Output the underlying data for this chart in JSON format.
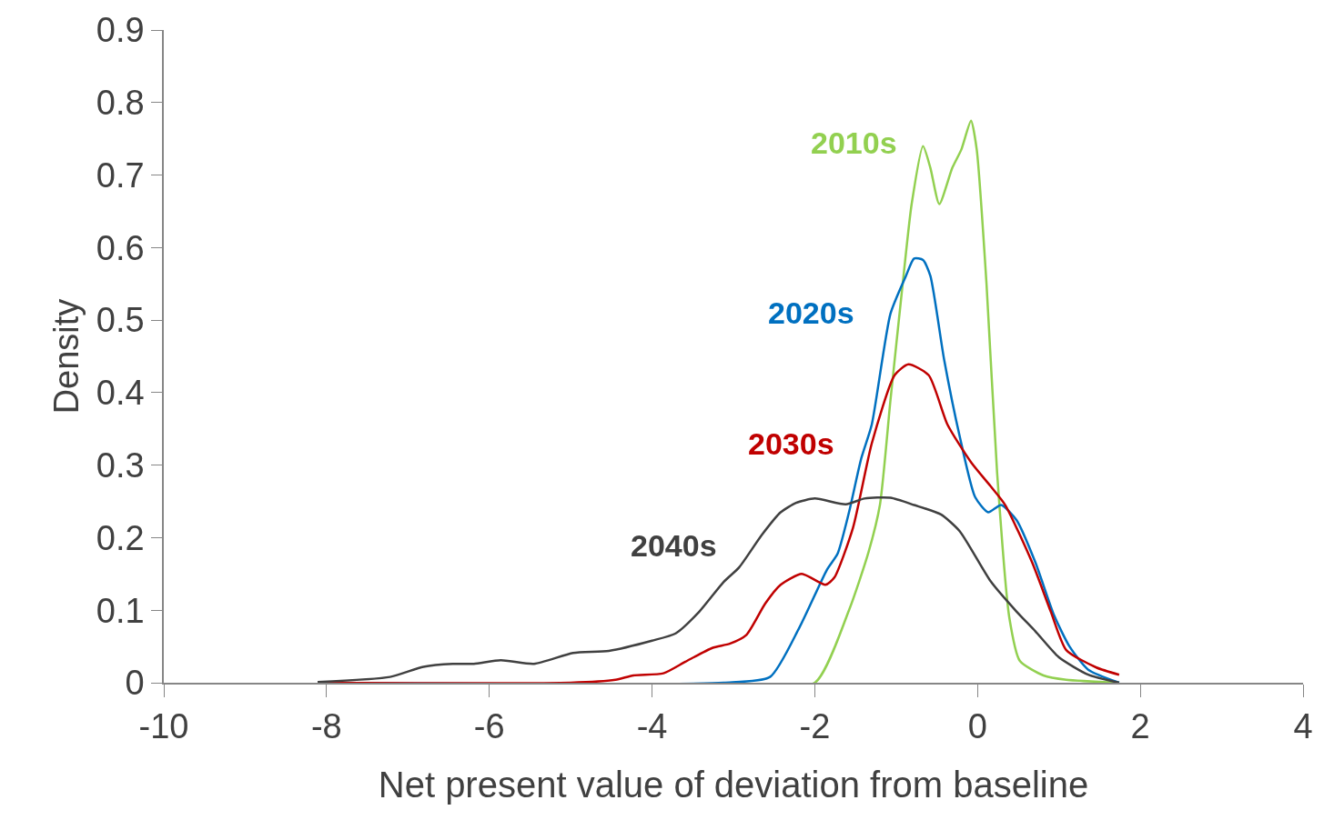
{
  "chart_data": {
    "type": "line",
    "xlabel": "Net present value of deviation from baseline",
    "ylabel": "Density",
    "xlim": [
      -10,
      4
    ],
    "xticks": [
      -10,
      -8,
      -6,
      -4,
      -2,
      0,
      2,
      4
    ],
    "ylim": [
      0,
      0.9
    ],
    "yticks": [
      0,
      0.1,
      0.2,
      0.3,
      0.4,
      0.5,
      0.6,
      0.7,
      0.8,
      0.9
    ],
    "legend": false,
    "marker": "none",
    "line_style": "solid",
    "series": [
      {
        "name": "2010s",
        "color": "#92d050",
        "x": [
          -3.0,
          -2.0,
          -1.58,
          -1.34,
          -1.2,
          -1.07,
          -0.92,
          -0.81,
          -0.67,
          -0.58,
          -0.47,
          -0.31,
          -0.2,
          -0.08,
          -0.01,
          0.11,
          0.24,
          0.39,
          0.52,
          0.81,
          1.09,
          1.74
        ],
        "values": [
          0,
          0.0,
          0.1,
          0.18,
          0.245,
          0.39,
          0.55,
          0.66,
          0.74,
          0.71,
          0.66,
          0.71,
          0.735,
          0.775,
          0.735,
          0.55,
          0.29,
          0.09,
          0.03,
          0.01,
          0.004,
          0
        ]
      },
      {
        "name": "2020s",
        "color": "#0070c0",
        "x": [
          -8.0,
          -3.12,
          -2.55,
          -2.19,
          -1.85,
          -1.72,
          -1.58,
          -1.43,
          -1.3,
          -1.07,
          -0.88,
          -0.78,
          -0.67,
          -0.58,
          -0.41,
          -0.22,
          -0.03,
          0.13,
          0.29,
          0.48,
          0.71,
          0.94,
          1.13,
          1.36,
          1.74
        ],
        "values": [
          0,
          0,
          0.008,
          0.076,
          0.156,
          0.178,
          0.235,
          0.309,
          0.356,
          0.509,
          0.561,
          0.585,
          0.583,
          0.561,
          0.445,
          0.34,
          0.256,
          0.235,
          0.245,
          0.224,
          0.166,
          0.093,
          0.05,
          0.018,
          0
        ]
      },
      {
        "name": "2030s",
        "color": "#c00000",
        "x": [
          -8.1,
          -5.0,
          -4.45,
          -4.23,
          -3.86,
          -3.59,
          -3.26,
          -3.04,
          -2.84,
          -2.61,
          -2.42,
          -2.16,
          -1.87,
          -1.76,
          -1.53,
          -1.3,
          -1.02,
          -0.85,
          -0.6,
          -0.37,
          -0.08,
          0.16,
          0.34,
          0.67,
          0.9,
          1.09,
          1.46,
          1.74
        ],
        "values": [
          0,
          0,
          0.004,
          0.01,
          0.013,
          0.029,
          0.048,
          0.054,
          0.066,
          0.109,
          0.135,
          0.15,
          0.135,
          0.145,
          0.214,
          0.33,
          0.424,
          0.439,
          0.424,
          0.356,
          0.304,
          0.271,
          0.245,
          0.166,
          0.098,
          0.045,
          0.021,
          0.011
        ]
      },
      {
        "name": "2040s",
        "color": "#404040",
        "x": [
          -8.11,
          -7.22,
          -6.81,
          -6.45,
          -6.19,
          -5.86,
          -5.45,
          -4.97,
          -4.53,
          -4.0,
          -3.71,
          -3.42,
          -3.12,
          -2.93,
          -2.65,
          -2.42,
          -2.23,
          -2.0,
          -1.62,
          -1.39,
          -1.07,
          -0.78,
          -0.45,
          -0.22,
          0.16,
          0.48,
          0.71,
          1.0,
          1.36,
          1.74
        ],
        "values": [
          0.001,
          0.008,
          0.022,
          0.026,
          0.026,
          0.031,
          0.026,
          0.041,
          0.044,
          0.058,
          0.068,
          0.098,
          0.139,
          0.159,
          0.204,
          0.235,
          0.248,
          0.254,
          0.246,
          0.254,
          0.255,
          0.245,
          0.232,
          0.209,
          0.14,
          0.098,
          0.071,
          0.035,
          0.011,
          0
        ]
      }
    ]
  }
}
